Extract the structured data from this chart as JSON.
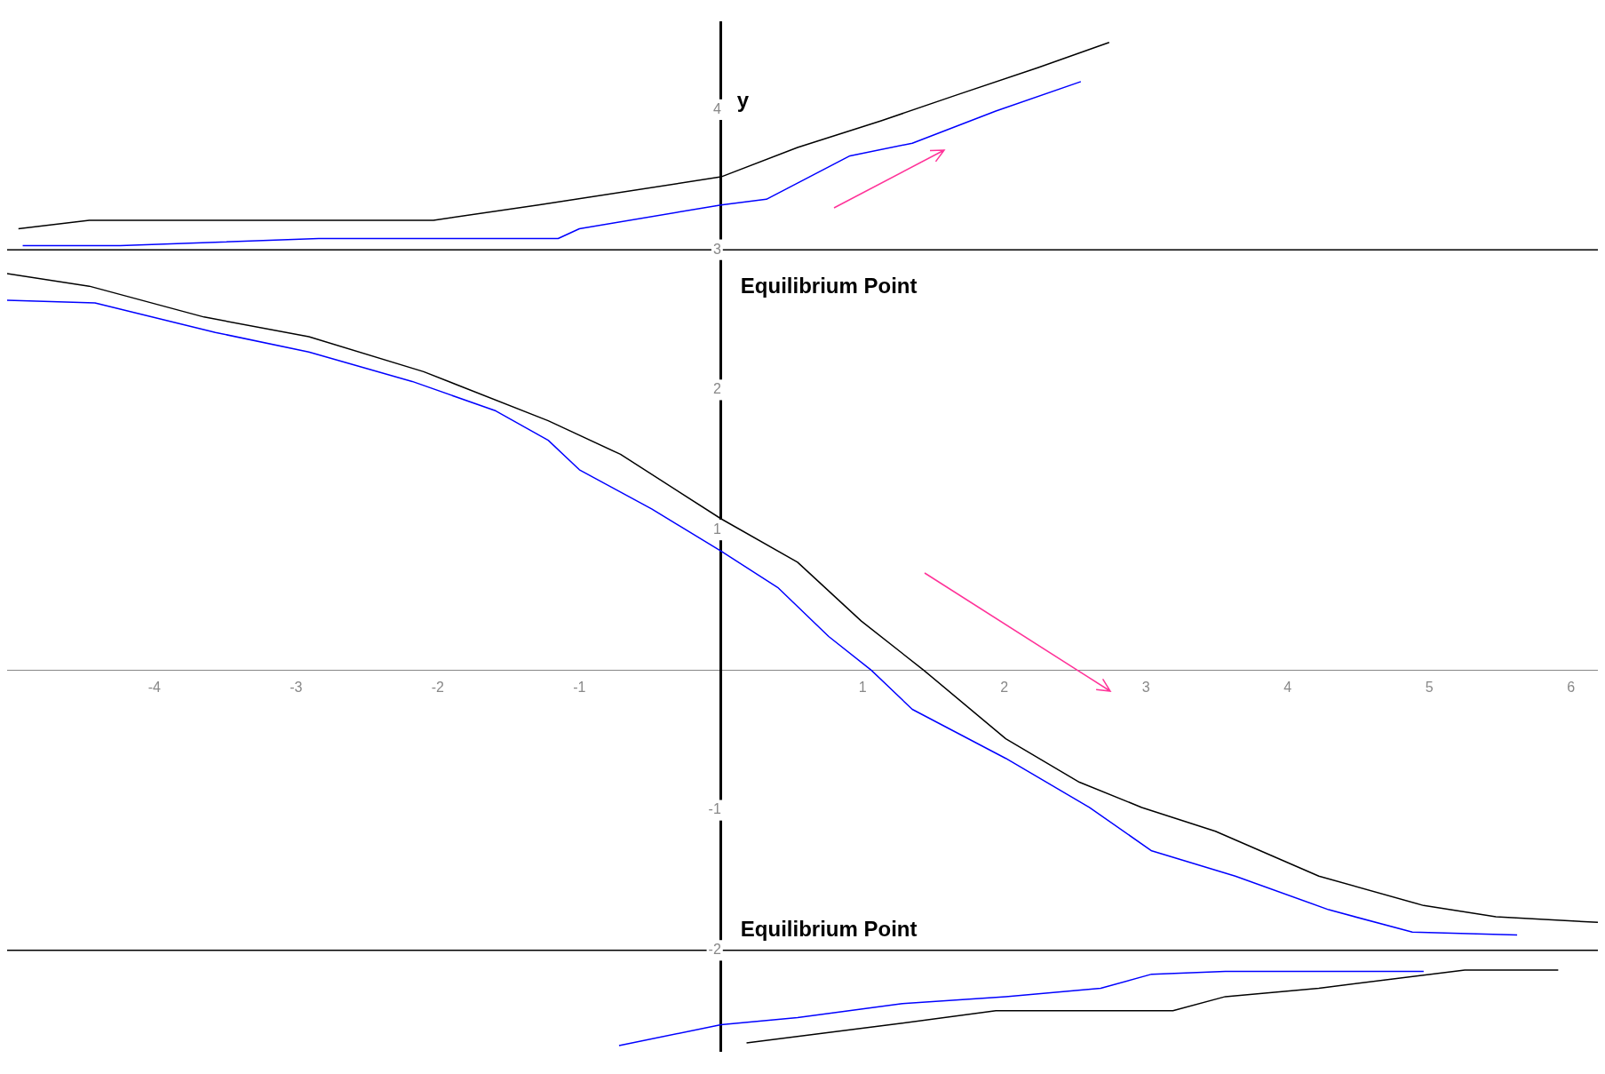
{
  "chart_data": {
    "type": "line",
    "ylabel": "y",
    "xlim": [
      -5.04,
      6.19
    ],
    "ylim": [
      -2.72,
      4.62
    ],
    "xticks": [
      -4,
      -3,
      -2,
      -1,
      1,
      2,
      3,
      4,
      5,
      6
    ],
    "yticks": [
      -2,
      -1,
      1,
      2,
      3,
      4
    ],
    "grid": false,
    "legend": false,
    "marker": "none",
    "line_style": "solid",
    "series": [
      {
        "color": "#000000",
        "x": [
          -4.96,
          -4.46,
          -2.03,
          -1.29,
          0,
          0.54,
          1.13,
          1.65,
          2.24,
          2.74
        ],
        "values": [
          3.15,
          3.21,
          3.21,
          3.32,
          3.52,
          3.73,
          3.92,
          4.1,
          4.3,
          4.48
        ]
      },
      {
        "color": "#0000ff",
        "x": [
          -4.93,
          -4.24,
          -2.84,
          -1.15,
          -1.0,
          0,
          0.32,
          0.91,
          1.35,
          1.94,
          2.54
        ],
        "values": [
          3.03,
          3.03,
          3.08,
          3.08,
          3.15,
          3.32,
          3.36,
          3.67,
          3.76,
          3.99,
          4.2
        ]
      },
      {
        "color": "#000000",
        "x": [
          -5.04,
          -4.46,
          -3.65,
          -2.91,
          -2.1,
          -1.22,
          -0.71,
          0,
          0.54,
          0.99,
          1.43,
          2.01,
          2.53,
          2.97,
          3.49,
          4.22,
          4.96,
          5.47,
          6.19
        ],
        "values": [
          2.83,
          2.74,
          2.52,
          2.38,
          2.13,
          1.78,
          1.54,
          1.08,
          0.77,
          0.35,
          0,
          -0.49,
          -0.8,
          -0.98,
          -1.15,
          -1.47,
          -1.68,
          -1.76,
          -1.8
        ]
      },
      {
        "color": "#0000ff",
        "x": [
          -5.04,
          -4.42,
          -3.57,
          -2.91,
          -2.18,
          -1.59,
          -1.22,
          -1.0,
          -0.49,
          0,
          0.4,
          0.76,
          1.06,
          1.35,
          2.01,
          2.6,
          3.04,
          3.63,
          4.29,
          4.88,
          5.62
        ],
        "values": [
          2.64,
          2.62,
          2.41,
          2.27,
          2.06,
          1.85,
          1.64,
          1.43,
          1.15,
          0.85,
          0.59,
          0.24,
          0,
          -0.28,
          -0.63,
          -0.98,
          -1.29,
          -1.47,
          -1.71,
          -1.87,
          -1.89
        ]
      },
      {
        "color": "#0000ff",
        "x": [
          -0.72,
          0,
          0.54,
          1.28,
          2.01,
          2.68,
          3.04,
          3.56,
          4.96
        ],
        "values": [
          -2.68,
          -2.53,
          -2.48,
          -2.38,
          -2.33,
          -2.27,
          -2.17,
          -2.15,
          -2.15
        ]
      },
      {
        "color": "#000000",
        "x": [
          0.18,
          1.28,
          1.94,
          3.19,
          3.56,
          4.22,
          5.25,
          5.91
        ],
        "values": [
          -2.66,
          -2.52,
          -2.43,
          -2.43,
          -2.33,
          -2.27,
          -2.14,
          -2.14
        ]
      }
    ],
    "ref_lines": [
      {
        "axis": "y",
        "value": 3,
        "label": "Equilibrium Point",
        "color": "#000000"
      },
      {
        "axis": "y",
        "value": -2,
        "label": "Equilibrium Point",
        "color": "#000000"
      }
    ]
  }
}
